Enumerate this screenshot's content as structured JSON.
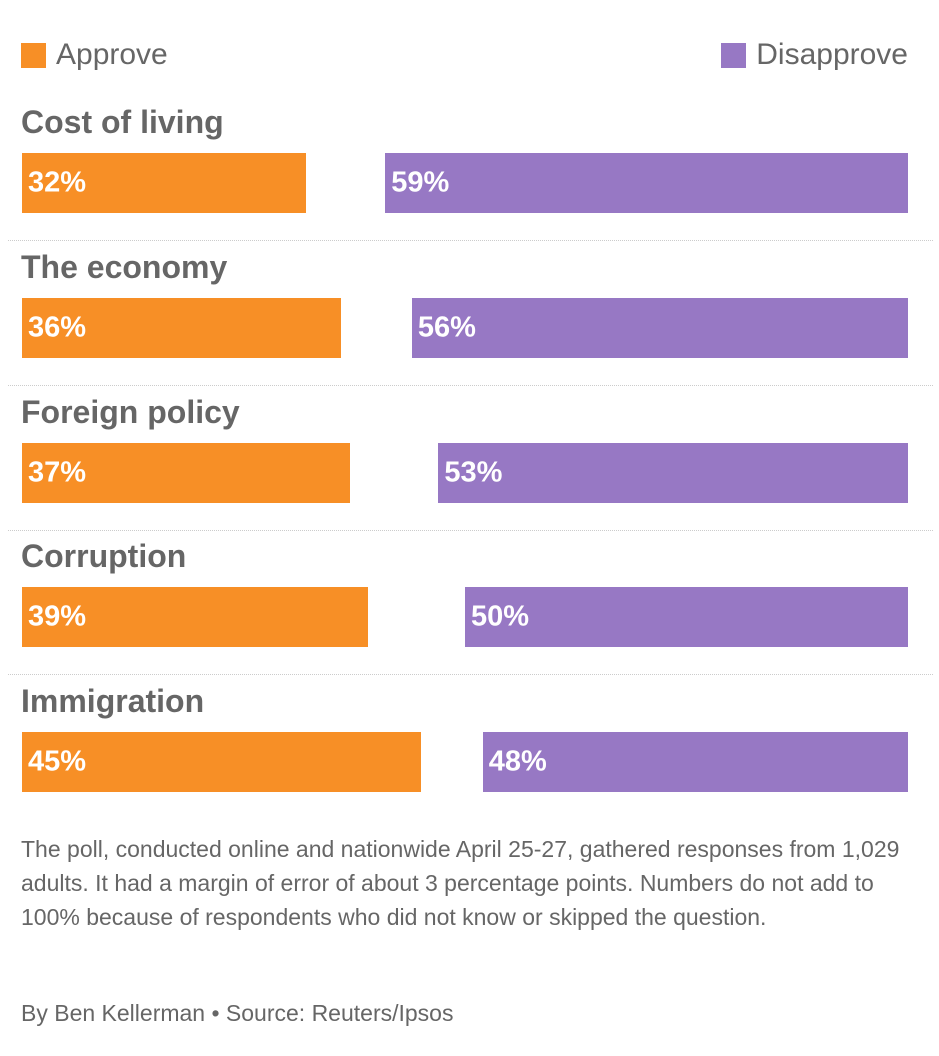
{
  "legend": {
    "approve": "Approve",
    "disapprove": "Disapprove"
  },
  "colors": {
    "approve": "#F78F26",
    "disapprove": "#9778C4"
  },
  "chart_data": {
    "type": "bar",
    "orientation": "horizontal",
    "categories": [
      "Cost of living",
      "The economy",
      "Foreign policy",
      "Corruption",
      "Immigration"
    ],
    "series": [
      {
        "name": "Approve",
        "values": [
          32,
          36,
          37,
          39,
          45
        ],
        "labels": [
          "32%",
          "36%",
          "37%",
          "39%",
          "45%"
        ]
      },
      {
        "name": "Disapprove",
        "values": [
          59,
          56,
          53,
          50,
          48
        ],
        "labels": [
          "59%",
          "56%",
          "53%",
          "50%",
          "48%"
        ]
      }
    ],
    "unit": "%",
    "xlim": [
      0,
      100
    ],
    "legend_position": "top"
  },
  "footnote": "The poll, conducted online and nationwide April 25-27, gathered responses from 1,029 adults. It had a margin of error of about 3 percentage points. Numbers do not add to 100% because of respondents who did not know or skipped the question.",
  "byline": "By Ben Kellerman • Source: Reuters/Ipsos"
}
